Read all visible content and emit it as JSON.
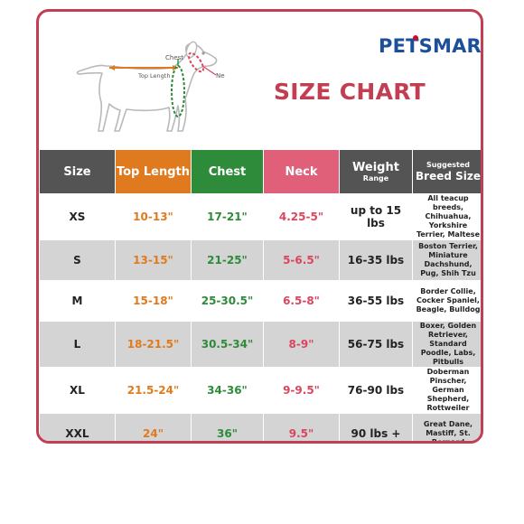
{
  "colors": {
    "accent": "#c23e52",
    "header_dark": "#545454",
    "top_length": "#e07a1f",
    "chest": "#2e8b3a",
    "neck": "#e0607a",
    "logo_blue": "#1b4f9c",
    "logo_red": "#c8102e"
  },
  "diagram": {
    "chest_label": "Chest",
    "top_length_label": "Top Length",
    "neck_label": "Neck"
  },
  "logo": {
    "part1": "PET",
    "part2": "SMART"
  },
  "title": "SIZE CHART",
  "table": {
    "headers": {
      "size": "Size",
      "top_length": "Top Length",
      "chest": "Chest",
      "neck": "Neck",
      "weight": "Weight",
      "weight_sub": "Range",
      "breed_sub": "Suggested",
      "breed": "Breed Size"
    },
    "rows": [
      {
        "size": "XS",
        "top_length": "10-13\"",
        "chest": "17-21\"",
        "neck": "4.25-5\"",
        "weight": "up to 15 lbs",
        "breed": "All teacup breeds, Chihuahua, Yorkshire Terrier, Maltese"
      },
      {
        "size": "S",
        "top_length": "13-15\"",
        "chest": "21-25\"",
        "neck": "5-6.5\"",
        "weight": "16-35 lbs",
        "breed": "Boston Terrier, Miniature Dachshund, Pug, Shih Tzu"
      },
      {
        "size": "M",
        "top_length": "15-18\"",
        "chest": "25-30.5\"",
        "neck": "6.5-8\"",
        "weight": "36-55 lbs",
        "breed": "Border Collie, Cocker Spaniel, Beagle, Bulldog"
      },
      {
        "size": "L",
        "top_length": "18-21.5\"",
        "chest": "30.5-34\"",
        "neck": "8-9\"",
        "weight": "56-75 lbs",
        "breed": "Boxer, Golden Retriever, Standard Poodle, Labs, Pitbulls"
      },
      {
        "size": "XL",
        "top_length": "21.5-24\"",
        "chest": "34-36\"",
        "neck": "9-9.5\"",
        "weight": "76-90 lbs",
        "breed": "Doberman Pinscher, German Shepherd, Rottweiler"
      },
      {
        "size": "XXL",
        "top_length": "24\"",
        "chest": "36\"",
        "neck": "9.5\"",
        "weight": "90 lbs +",
        "breed": "Great Dane, Mastiff, St. Bernard"
      }
    ]
  }
}
